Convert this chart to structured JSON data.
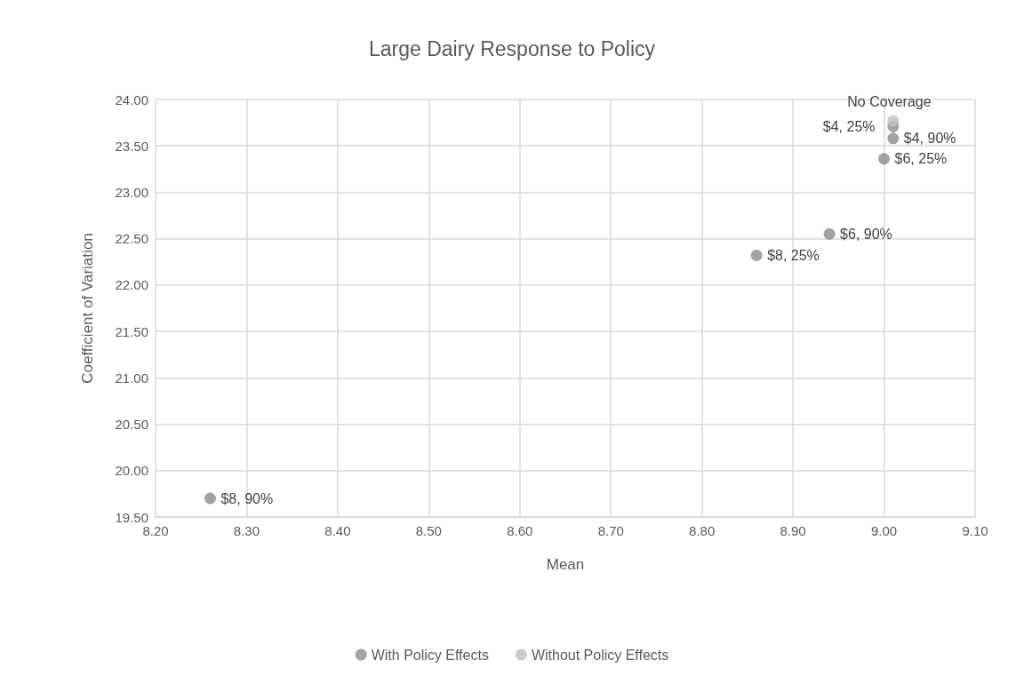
{
  "chart_data": {
    "type": "scatter",
    "title": "Large Dairy Response to Policy",
    "xlabel": "Mean",
    "ylabel": "Coefficient of Variation",
    "series": [
      {
        "name": "With Policy Effects",
        "color": "#8c8c8c",
        "x": [
          8.26,
          8.86,
          8.94,
          9.0,
          9.01,
          9.01
        ],
        "values": [
          19.7,
          22.32,
          22.55,
          23.36,
          23.58,
          23.71
        ]
      },
      {
        "name": "Without Policy Effects",
        "color": "#bfbfbf",
        "x": [
          9.01
        ],
        "values": [
          23.77
        ]
      }
    ],
    "annotations": [
      {
        "text": "$8, 90%",
        "x": 8.26,
        "y": 19.7
      },
      {
        "text": "$8, 25%",
        "x": 8.86,
        "y": 22.32
      },
      {
        "text": "$6, 90%",
        "x": 8.94,
        "y": 22.55
      },
      {
        "text": "$6, 25%",
        "x": 9.0,
        "y": 23.36
      },
      {
        "text": "$4, 90%",
        "x": 9.01,
        "y": 23.58
      },
      {
        "text": "$4, 25%",
        "x": 9.01,
        "y": 23.71
      },
      {
        "text": "No Coverage",
        "x": 9.01,
        "y": 23.77
      }
    ],
    "xlim": [
      8.2,
      9.1
    ],
    "xticks": [
      {
        "value": 8.2,
        "label": "8.20"
      },
      {
        "value": 8.3,
        "label": "8.30"
      },
      {
        "value": 8.4,
        "label": "8.40"
      },
      {
        "value": 8.5,
        "label": "8.50"
      },
      {
        "value": 8.6,
        "label": "8.60"
      },
      {
        "value": 8.7,
        "label": "8.70"
      },
      {
        "value": 8.8,
        "label": "8.80"
      },
      {
        "value": 8.9,
        "label": "8.90"
      },
      {
        "value": 9.0,
        "label": "9.00"
      },
      {
        "value": 9.1,
        "label": "9.10"
      }
    ],
    "ylim": [
      19.5,
      24
    ],
    "yticks": [
      {
        "value": 19.5,
        "label": "19.50"
      },
      {
        "value": 20,
        "label": "20.00"
      },
      {
        "value": 20.5,
        "label": "20.50"
      },
      {
        "value": 21,
        "label": "21.00"
      },
      {
        "value": 21.5,
        "label": "21.50"
      },
      {
        "value": 22,
        "label": "22.00"
      },
      {
        "value": 22.5,
        "label": "22.50"
      },
      {
        "value": 23,
        "label": "23.00"
      },
      {
        "value": 23.5,
        "label": "23.50"
      },
      {
        "value": 24,
        "label": "24.00"
      }
    ],
    "grid": true,
    "legend": "bottom",
    "marker": "circle"
  }
}
